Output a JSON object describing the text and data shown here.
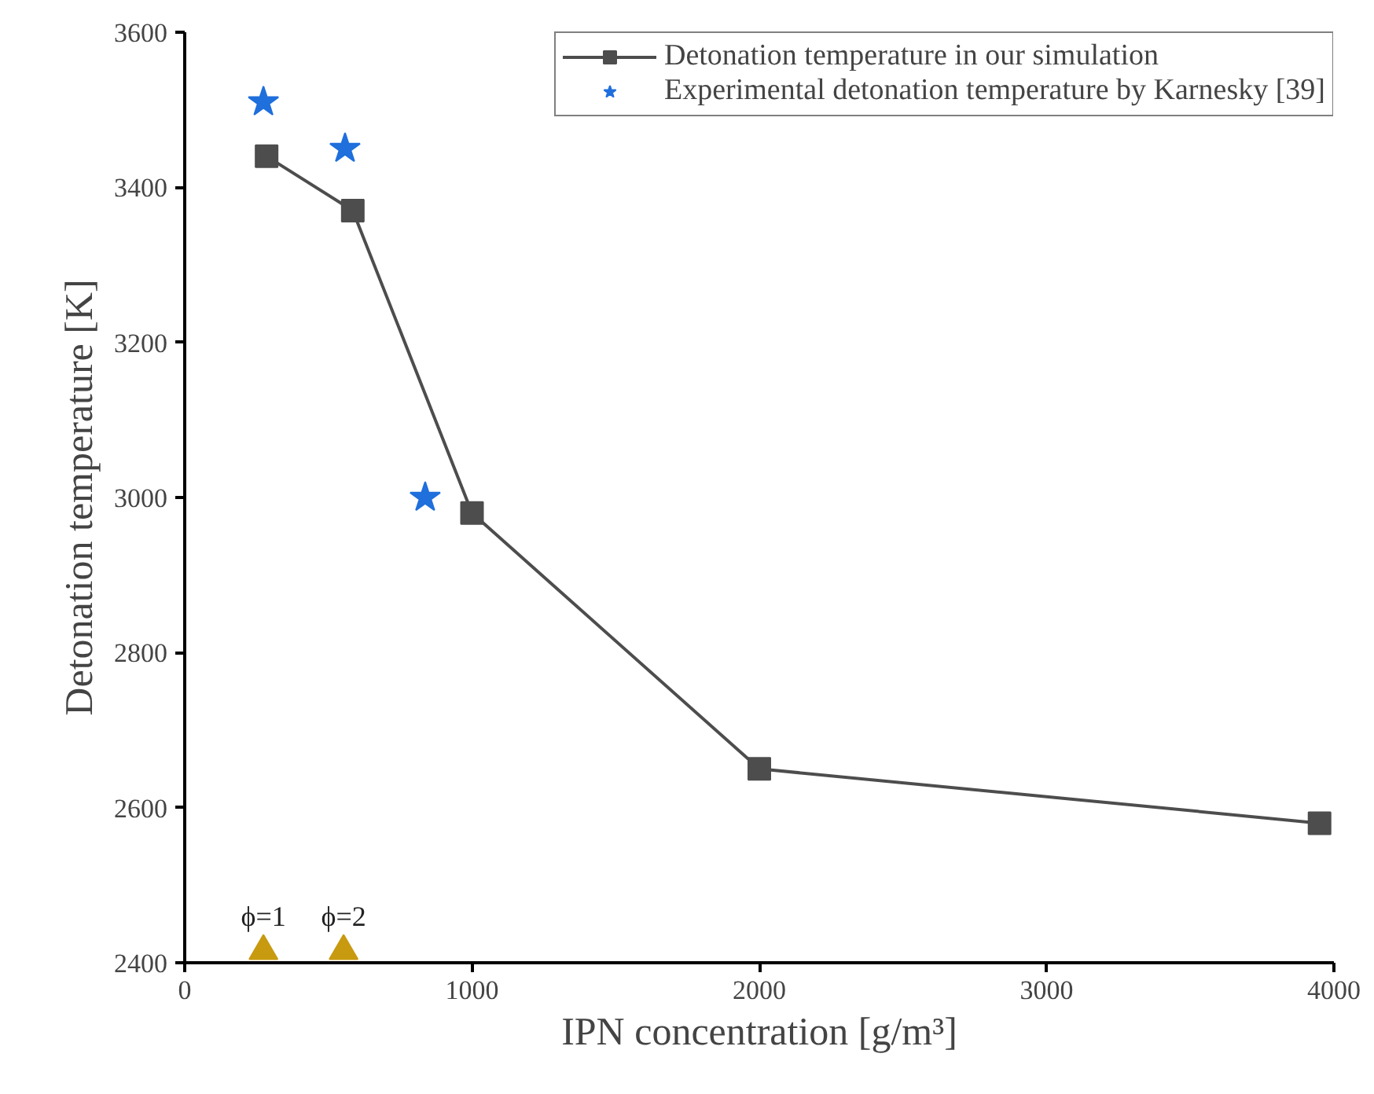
{
  "chart_data": {
    "type": "line",
    "xlabel": "IPN concentration [g/m³]",
    "ylabel": "Detonation temperature [K]",
    "xlim": [
      0,
      4000
    ],
    "xticks": [
      0,
      1000,
      2000,
      3000,
      4000
    ],
    "ylim": [
      2400,
      3600
    ],
    "yticks": [
      2400,
      2600,
      2800,
      3000,
      3200,
      3400,
      3600
    ],
    "grid": false,
    "legend": "top right",
    "line_style": "solid",
    "series": [
      {
        "name": "Detonation temperature in our simulation",
        "marker": "square",
        "color": "#4d4d4d",
        "x": [
          285,
          585,
          1000,
          2000,
          3950
        ],
        "values": [
          3440,
          3370,
          2980,
          2650,
          2580
        ]
      },
      {
        "name": "Experimental detonation temperature by Karnesky [39]",
        "type": "scatter",
        "marker": "star",
        "color": "#1f6fdc",
        "x": [
          274,
          558,
          837
        ],
        "values": [
          3510,
          3450,
          3000
        ]
      },
      {
        "type": "scatter",
        "marker": "triangle",
        "color": "#c89a10",
        "x": [
          274,
          553
        ],
        "values": [
          2415,
          2415
        ]
      }
    ],
    "annotations": [
      {
        "text": "ϕ=1",
        "x": 274,
        "y": 2415
      },
      {
        "text": "ϕ=2",
        "x": 553,
        "y": 2415
      }
    ]
  }
}
